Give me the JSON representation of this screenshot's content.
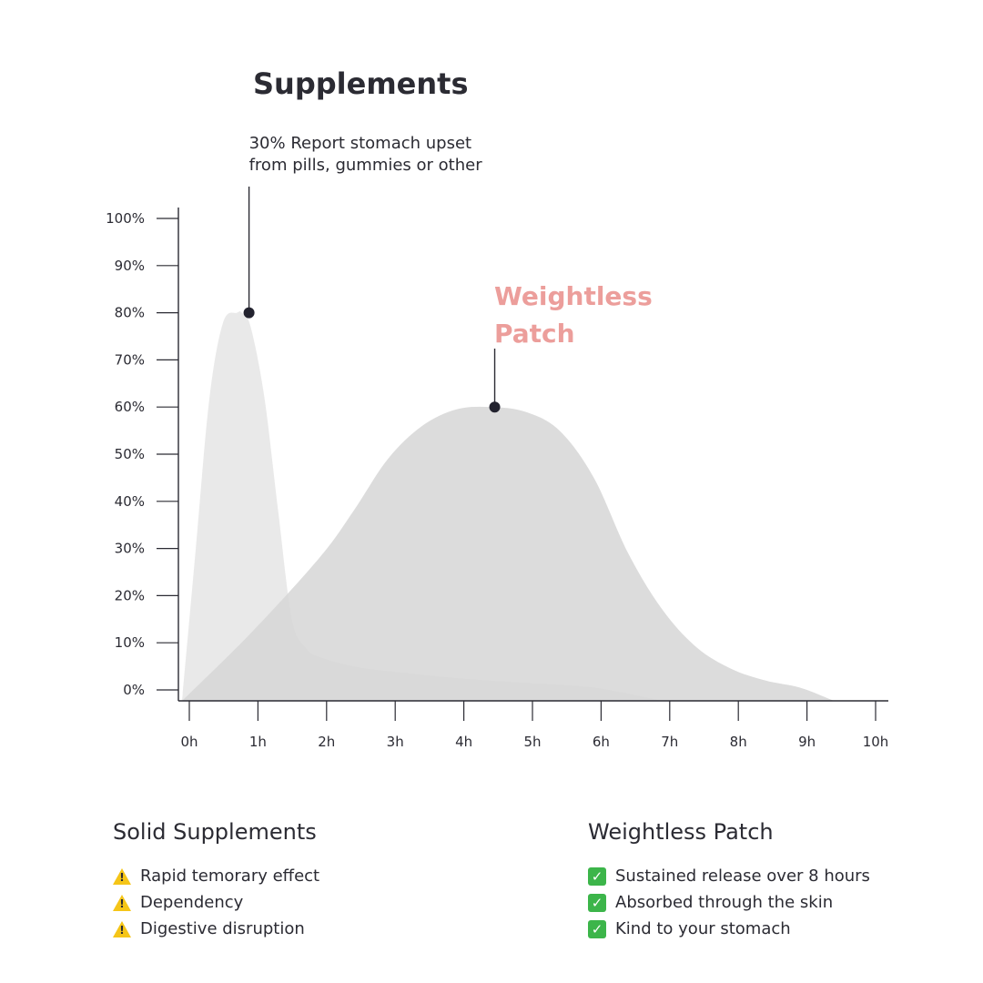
{
  "chart_data": {
    "type": "area",
    "title": "Supplements",
    "xlabel": "",
    "ylabel": "",
    "x_ticks": [
      "0h",
      "1h",
      "2h",
      "3h",
      "4h",
      "5h",
      "6h",
      "7h",
      "8h",
      "9h",
      "10h"
    ],
    "y_ticks": [
      "0%",
      "10%",
      "20%",
      "30%",
      "40%",
      "50%",
      "60%",
      "70%",
      "80%",
      "90%",
      "100%"
    ],
    "xlim": [
      0,
      10
    ],
    "ylim": [
      0,
      100
    ],
    "grid": false,
    "series": [
      {
        "x": [
          0,
          0.2,
          0.4,
          0.6,
          0.8,
          0.87,
          1.0,
          1.2,
          1.4,
          1.6,
          1.8,
          2.0,
          2.5,
          3.0,
          4.0,
          5.0,
          6.0,
          7.0
        ],
        "values": [
          0,
          30,
          62,
          78,
          80,
          80,
          77,
          62,
          38,
          15,
          9,
          7,
          5,
          4,
          2.5,
          1.5,
          0.5,
          0
        ],
        "color": "#e8e8e8"
      },
      {
        "x": [
          0,
          1,
          2,
          2.5,
          3,
          3.5,
          4,
          4.5,
          5,
          5.5,
          6,
          6.5,
          7,
          7.5,
          8,
          8.5,
          9,
          9.5
        ],
        "values": [
          0,
          12,
          28,
          38,
          49,
          56,
          59.5,
          60,
          59,
          55,
          45,
          29,
          17,
          9,
          4.5,
          2,
          0.5,
          0
        ],
        "color": "#d6d6d6"
      }
    ],
    "annotations": [
      {
        "text_lines": [
          "30% Report stomach upset",
          "from pills, gummies or other"
        ],
        "x": 0.87,
        "y": 80
      },
      {
        "text_lines": [
          "Weightless",
          "Patch"
        ],
        "x": 4.45,
        "y": 60,
        "color": "#ec9e9b"
      }
    ]
  },
  "legend": {
    "solid": {
      "heading": "Solid Supplements",
      "icon": "warning-icon",
      "items": [
        "Rapid temorary effect",
        "Dependency",
        "Digestive disruption"
      ]
    },
    "patch": {
      "heading": "Weightless Patch",
      "icon": "check-mark-icon",
      "items": [
        "Sustained release over 8 hours",
        "Absorbed through the skin",
        "Kind to your stomach"
      ]
    }
  }
}
